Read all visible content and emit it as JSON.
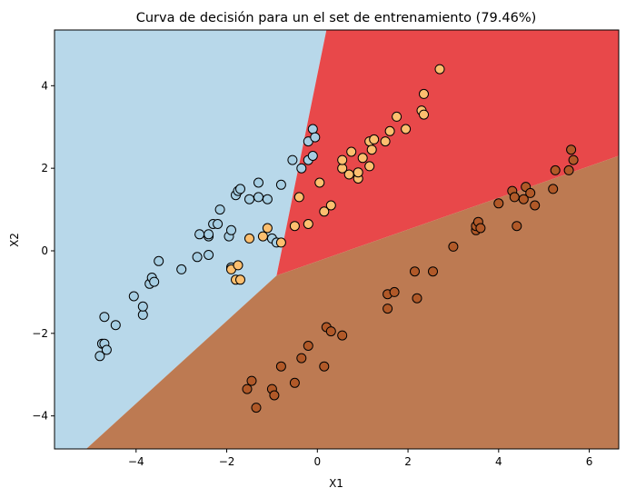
{
  "chart_data": {
    "type": "scatter",
    "title": "Curva de decisión para un el set de entrenamiento (79.46%)",
    "xlabel": "X1",
    "ylabel": "X2",
    "xlim": [
      -5.8,
      6.65
    ],
    "ylim": [
      -4.8,
      5.35
    ],
    "xticks": [
      -4,
      -2,
      0,
      2,
      4,
      6
    ],
    "yticks": [
      -4,
      -2,
      0,
      2,
      4
    ],
    "xtick_labels": [
      "−4",
      "−2",
      "0",
      "2",
      "4",
      "6"
    ],
    "ytick_labels": [
      "−4",
      "−2",
      "0",
      "2",
      "4"
    ],
    "grid": false,
    "regions": [
      {
        "name": "light-blue",
        "color": "#b8d8ea",
        "polygon": [
          [
            -5.8,
            5.35
          ],
          [
            0.2,
            5.35
          ],
          [
            -0.9,
            -0.6
          ],
          [
            -5.1,
            -4.8
          ],
          [
            -5.8,
            -4.8
          ]
        ]
      },
      {
        "name": "red",
        "color": "#e8484a",
        "polygon": [
          [
            0.2,
            5.35
          ],
          [
            6.65,
            5.35
          ],
          [
            6.65,
            2.3
          ],
          [
            -0.9,
            -0.6
          ]
        ]
      },
      {
        "name": "brown",
        "color": "#bd7a52",
        "polygon": [
          [
            -0.9,
            -0.6
          ],
          [
            6.65,
            2.3
          ],
          [
            6.65,
            -4.8
          ],
          [
            -5.1,
            -4.8
          ]
        ]
      }
    ],
    "series": [
      {
        "color": "#a6cee3",
        "points": [
          [
            -4.8,
            -2.55
          ],
          [
            -4.75,
            -2.25
          ],
          [
            -4.7,
            -2.25
          ],
          [
            -4.7,
            -1.6
          ],
          [
            -4.65,
            -2.4
          ],
          [
            -4.45,
            -1.8
          ],
          [
            -4.05,
            -1.1
          ],
          [
            -3.85,
            -1.55
          ],
          [
            -3.85,
            -1.35
          ],
          [
            -3.7,
            -0.8
          ],
          [
            -3.65,
            -0.65
          ],
          [
            -3.6,
            -0.75
          ],
          [
            -3.5,
            -0.25
          ],
          [
            -3.0,
            -0.45
          ],
          [
            -2.65,
            -0.15
          ],
          [
            -2.6,
            0.4
          ],
          [
            -2.4,
            0.35
          ],
          [
            -2.4,
            0.4
          ],
          [
            -2.4,
            -0.1
          ],
          [
            -2.3,
            0.65
          ],
          [
            -2.2,
            0.65
          ],
          [
            -2.15,
            1.0
          ],
          [
            -1.95,
            0.35
          ],
          [
            -1.9,
            0.5
          ],
          [
            -1.9,
            -0.4
          ],
          [
            -1.8,
            1.35
          ],
          [
            -1.75,
            1.45
          ],
          [
            -1.7,
            1.5
          ],
          [
            -1.5,
            1.25
          ],
          [
            -1.3,
            1.3
          ],
          [
            -1.3,
            1.65
          ],
          [
            -1.1,
            1.25
          ],
          [
            -1.0,
            0.3
          ],
          [
            -0.9,
            0.2
          ],
          [
            -0.8,
            1.6
          ],
          [
            -0.55,
            2.2
          ],
          [
            -0.35,
            2.0
          ],
          [
            -0.2,
            2.2
          ],
          [
            -0.2,
            2.65
          ],
          [
            -0.1,
            2.3
          ],
          [
            -0.1,
            2.95
          ],
          [
            -0.05,
            2.75
          ]
        ]
      },
      {
        "color": "#fdbf6f",
        "points": [
          [
            -1.9,
            -0.45
          ],
          [
            -1.8,
            -0.7
          ],
          [
            -1.75,
            -0.35
          ],
          [
            -1.7,
            -0.7
          ],
          [
            -1.5,
            0.3
          ],
          [
            -1.2,
            0.35
          ],
          [
            -1.1,
            0.55
          ],
          [
            -0.8,
            0.2
          ],
          [
            -0.5,
            0.6
          ],
          [
            -0.4,
            1.3
          ],
          [
            -0.2,
            0.65
          ],
          [
            0.05,
            1.65
          ],
          [
            0.15,
            0.95
          ],
          [
            0.3,
            1.1
          ],
          [
            0.55,
            2.0
          ],
          [
            0.55,
            2.2
          ],
          [
            0.7,
            1.85
          ],
          [
            0.75,
            2.4
          ],
          [
            0.9,
            1.75
          ],
          [
            0.9,
            1.9
          ],
          [
            1.0,
            2.25
          ],
          [
            1.15,
            2.65
          ],
          [
            1.15,
            2.05
          ],
          [
            1.2,
            2.45
          ],
          [
            1.25,
            2.7
          ],
          [
            1.5,
            2.65
          ],
          [
            1.6,
            2.9
          ],
          [
            1.75,
            3.25
          ],
          [
            1.95,
            2.95
          ],
          [
            2.3,
            3.4
          ],
          [
            2.35,
            3.3
          ],
          [
            2.35,
            3.8
          ],
          [
            2.7,
            4.4
          ]
        ]
      },
      {
        "color": "#b15928",
        "points": [
          [
            -1.55,
            -3.35
          ],
          [
            -1.45,
            -3.15
          ],
          [
            -1.35,
            -3.8
          ],
          [
            -1.0,
            -3.35
          ],
          [
            -0.95,
            -3.5
          ],
          [
            -0.8,
            -2.8
          ],
          [
            -0.5,
            -3.2
          ],
          [
            -0.35,
            -2.6
          ],
          [
            -0.2,
            -2.3
          ],
          [
            0.15,
            -2.8
          ],
          [
            0.2,
            -1.85
          ],
          [
            0.3,
            -1.95
          ],
          [
            0.55,
            -2.05
          ],
          [
            1.55,
            -1.05
          ],
          [
            1.55,
            -1.4
          ],
          [
            1.7,
            -1.0
          ],
          [
            2.15,
            -0.5
          ],
          [
            2.2,
            -1.15
          ],
          [
            2.55,
            -0.5
          ],
          [
            3.0,
            0.1
          ],
          [
            3.5,
            0.5
          ],
          [
            3.5,
            0.6
          ],
          [
            3.55,
            0.7
          ],
          [
            3.6,
            0.55
          ],
          [
            4.0,
            1.15
          ],
          [
            4.3,
            1.45
          ],
          [
            4.35,
            1.3
          ],
          [
            4.4,
            0.6
          ],
          [
            4.55,
            1.25
          ],
          [
            4.6,
            1.55
          ],
          [
            4.7,
            1.4
          ],
          [
            4.8,
            1.1
          ],
          [
            5.2,
            1.5
          ],
          [
            5.25,
            1.95
          ],
          [
            5.55,
            1.95
          ],
          [
            5.6,
            2.45
          ],
          [
            5.65,
            2.2
          ]
        ]
      }
    ]
  }
}
